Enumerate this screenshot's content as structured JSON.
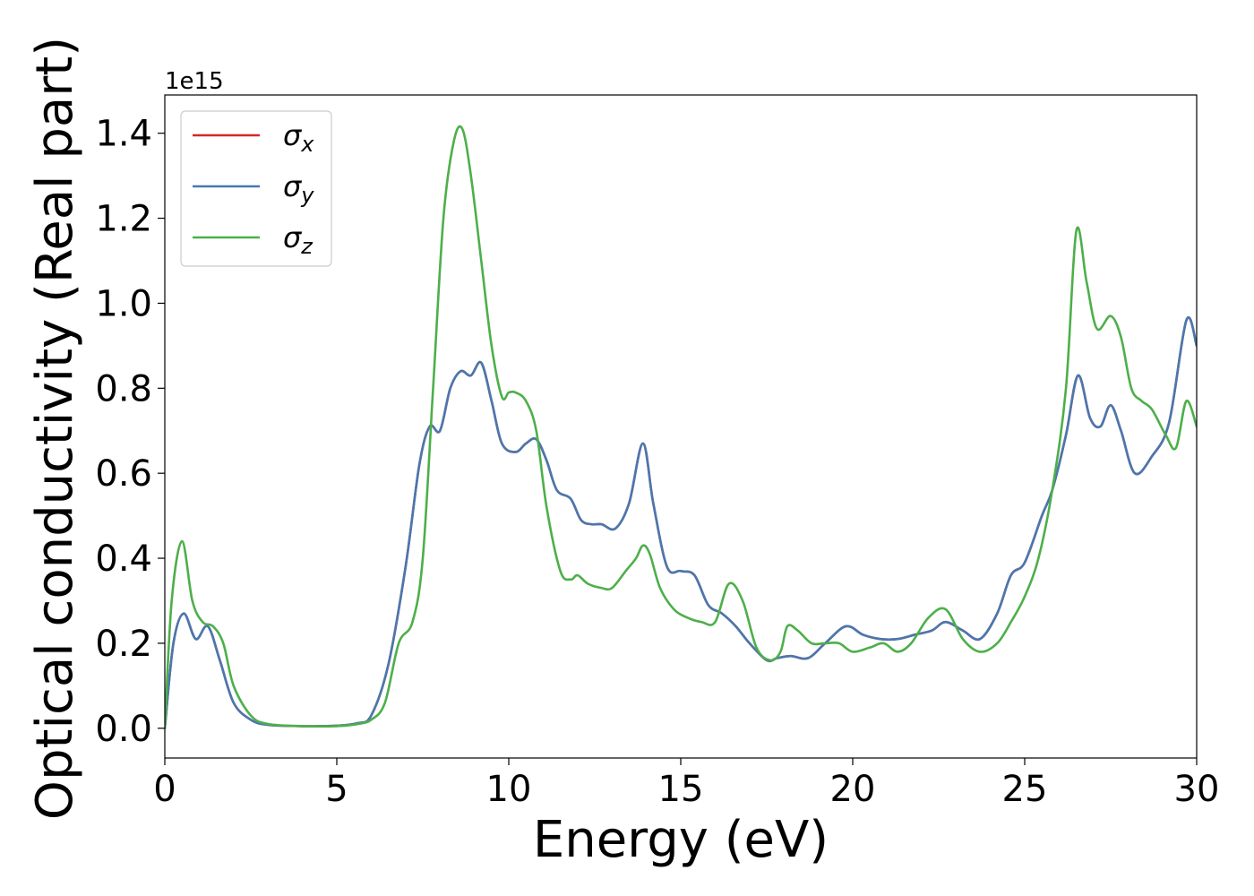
{
  "chart_data": {
    "type": "line",
    "title": "",
    "xlabel": "Energy (eV)",
    "ylabel": "Optical conductivity (Real part)",
    "y_offset_label": "1e15",
    "y_scale_factor": 1000000000000000.0,
    "xlim": [
      0,
      30
    ],
    "ylim": [
      -0.07,
      1.49
    ],
    "xticks": [
      0,
      5,
      10,
      15,
      20,
      25,
      30
    ],
    "xtick_labels": [
      "0",
      "5",
      "10",
      "15",
      "20",
      "25",
      "30"
    ],
    "yticks": [
      0.0,
      0.2,
      0.4,
      0.6,
      0.8,
      1.0,
      1.2,
      1.4
    ],
    "ytick_labels": [
      "0.0",
      "0.2",
      "0.4",
      "0.6",
      "0.8",
      "1.0",
      "1.2",
      "1.4"
    ],
    "grid": false,
    "legend": "top-left",
    "series": [
      {
        "name": "σx",
        "legend_base": "σ",
        "legend_sub": "x",
        "color": "#d62728",
        "x": [
          0,
          0.25,
          0.55,
          0.9,
          1.25,
          1.6,
          2.0,
          2.5,
          3.0,
          4.0,
          5.0,
          5.6,
          6.0,
          6.5,
          7.0,
          7.4,
          7.7,
          8.0,
          8.3,
          8.6,
          8.9,
          9.2,
          9.5,
          9.8,
          10.2,
          10.5,
          10.8,
          11.1,
          11.4,
          11.8,
          12.1,
          12.4,
          12.7,
          13.1,
          13.5,
          13.9,
          14.2,
          14.6,
          15.0,
          15.4,
          15.8,
          16.2,
          16.6,
          17.0,
          17.5,
          17.8,
          18.2,
          18.7,
          19.2,
          19.8,
          20.3,
          20.8,
          21.3,
          21.8,
          22.3,
          22.7,
          23.2,
          23.7,
          24.2,
          24.6,
          25.0,
          25.5,
          25.8,
          26.2,
          26.55,
          26.9,
          27.2,
          27.5,
          27.8,
          28.2,
          28.7,
          29.2,
          29.7,
          30.0
        ],
        "y": [
          0.0,
          0.2,
          0.27,
          0.21,
          0.24,
          0.16,
          0.06,
          0.02,
          0.008,
          0.005,
          0.006,
          0.012,
          0.03,
          0.15,
          0.38,
          0.62,
          0.71,
          0.7,
          0.8,
          0.84,
          0.83,
          0.86,
          0.77,
          0.67,
          0.65,
          0.67,
          0.68,
          0.63,
          0.56,
          0.54,
          0.49,
          0.48,
          0.48,
          0.47,
          0.53,
          0.67,
          0.53,
          0.38,
          0.37,
          0.36,
          0.29,
          0.27,
          0.24,
          0.2,
          0.16,
          0.165,
          0.17,
          0.165,
          0.2,
          0.24,
          0.22,
          0.21,
          0.21,
          0.22,
          0.23,
          0.25,
          0.23,
          0.21,
          0.27,
          0.36,
          0.39,
          0.5,
          0.56,
          0.69,
          0.83,
          0.73,
          0.71,
          0.76,
          0.7,
          0.6,
          0.64,
          0.72,
          0.96,
          0.9
        ]
      },
      {
        "name": "σy",
        "legend_base": "σ",
        "legend_sub": "y",
        "color": "#4878b0",
        "x": [
          0,
          0.25,
          0.55,
          0.9,
          1.25,
          1.6,
          2.0,
          2.5,
          3.0,
          4.0,
          5.0,
          5.6,
          6.0,
          6.5,
          7.0,
          7.4,
          7.7,
          8.0,
          8.3,
          8.6,
          8.9,
          9.2,
          9.5,
          9.8,
          10.2,
          10.5,
          10.8,
          11.1,
          11.4,
          11.8,
          12.1,
          12.4,
          12.7,
          13.1,
          13.5,
          13.9,
          14.2,
          14.6,
          15.0,
          15.4,
          15.8,
          16.2,
          16.6,
          17.0,
          17.5,
          17.8,
          18.2,
          18.7,
          19.2,
          19.8,
          20.3,
          20.8,
          21.3,
          21.8,
          22.3,
          22.7,
          23.2,
          23.7,
          24.2,
          24.6,
          25.0,
          25.5,
          25.8,
          26.2,
          26.55,
          26.9,
          27.2,
          27.5,
          27.8,
          28.2,
          28.7,
          29.2,
          29.7,
          30.0
        ],
        "y": [
          0.0,
          0.2,
          0.27,
          0.21,
          0.24,
          0.16,
          0.06,
          0.02,
          0.008,
          0.005,
          0.006,
          0.012,
          0.03,
          0.15,
          0.38,
          0.62,
          0.71,
          0.7,
          0.8,
          0.84,
          0.83,
          0.86,
          0.77,
          0.67,
          0.65,
          0.67,
          0.68,
          0.63,
          0.56,
          0.54,
          0.49,
          0.48,
          0.48,
          0.47,
          0.53,
          0.67,
          0.53,
          0.38,
          0.37,
          0.36,
          0.29,
          0.27,
          0.24,
          0.2,
          0.16,
          0.165,
          0.17,
          0.165,
          0.2,
          0.24,
          0.22,
          0.21,
          0.21,
          0.22,
          0.23,
          0.25,
          0.23,
          0.21,
          0.27,
          0.36,
          0.39,
          0.5,
          0.56,
          0.69,
          0.83,
          0.73,
          0.71,
          0.76,
          0.7,
          0.6,
          0.64,
          0.72,
          0.96,
          0.9
        ]
      },
      {
        "name": "σz",
        "legend_base": "σ",
        "legend_sub": "z",
        "color": "#4daf4a",
        "x": [
          0,
          0.2,
          0.5,
          0.8,
          1.1,
          1.4,
          1.7,
          2.0,
          2.5,
          3.0,
          4.0,
          5.0,
          5.6,
          6.0,
          6.4,
          6.8,
          7.2,
          7.5,
          7.8,
          8.1,
          8.4,
          8.65,
          8.9,
          9.2,
          9.5,
          9.8,
          10.0,
          10.2,
          10.5,
          10.8,
          11.1,
          11.5,
          11.8,
          12.0,
          12.3,
          12.7,
          13.0,
          13.4,
          13.7,
          13.9,
          14.1,
          14.4,
          14.8,
          15.2,
          15.6,
          16.0,
          16.4,
          16.8,
          17.2,
          17.6,
          17.9,
          18.1,
          18.4,
          18.8,
          19.2,
          19.6,
          20.0,
          20.5,
          20.9,
          21.3,
          21.7,
          22.2,
          22.7,
          23.2,
          23.7,
          24.2,
          24.6,
          25.0,
          25.4,
          25.8,
          26.2,
          26.5,
          26.8,
          27.1,
          27.5,
          27.8,
          28.1,
          28.4,
          28.7,
          29.1,
          29.4,
          29.7,
          30.0
        ],
        "y": [
          0.0,
          0.3,
          0.44,
          0.3,
          0.25,
          0.24,
          0.2,
          0.1,
          0.03,
          0.01,
          0.005,
          0.005,
          0.01,
          0.02,
          0.06,
          0.2,
          0.25,
          0.4,
          0.8,
          1.2,
          1.38,
          1.41,
          1.3,
          1.1,
          0.9,
          0.78,
          0.79,
          0.79,
          0.77,
          0.7,
          0.52,
          0.37,
          0.35,
          0.36,
          0.34,
          0.33,
          0.33,
          0.37,
          0.4,
          0.43,
          0.41,
          0.33,
          0.28,
          0.26,
          0.25,
          0.25,
          0.34,
          0.3,
          0.19,
          0.16,
          0.18,
          0.24,
          0.23,
          0.2,
          0.2,
          0.2,
          0.18,
          0.19,
          0.2,
          0.18,
          0.2,
          0.26,
          0.28,
          0.21,
          0.18,
          0.2,
          0.25,
          0.31,
          0.4,
          0.56,
          0.8,
          1.17,
          1.05,
          0.94,
          0.97,
          0.92,
          0.8,
          0.77,
          0.75,
          0.69,
          0.66,
          0.77,
          0.71
        ]
      }
    ]
  }
}
